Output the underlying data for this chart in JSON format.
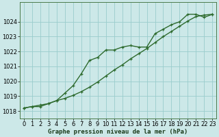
{
  "line1_x": [
    0,
    1,
    2,
    3,
    4,
    5,
    6,
    7,
    8,
    9,
    10,
    11,
    12,
    13,
    14,
    15,
    16,
    17,
    18,
    19,
    20,
    21,
    22,
    23
  ],
  "line1_y": [
    1018.2,
    1018.3,
    1018.3,
    1018.5,
    1018.7,
    1019.2,
    1019.7,
    1020.5,
    1021.4,
    1021.6,
    1022.1,
    1022.1,
    1022.3,
    1022.4,
    1022.3,
    1022.3,
    1023.2,
    1023.5,
    1023.8,
    1024.0,
    1024.5,
    1024.5,
    1024.3,
    1024.5
  ],
  "line2_x": [
    0,
    1,
    2,
    3,
    4,
    5,
    6,
    7,
    8,
    9,
    10,
    11,
    12,
    13,
    14,
    15,
    16,
    17,
    18,
    19,
    20,
    21,
    22,
    23
  ],
  "line2_y": [
    1018.2,
    1018.3,
    1018.4,
    1018.5,
    1018.7,
    1018.85,
    1019.05,
    1019.3,
    1019.6,
    1019.95,
    1020.35,
    1020.75,
    1021.1,
    1021.5,
    1021.85,
    1022.2,
    1022.6,
    1023.0,
    1023.35,
    1023.7,
    1024.05,
    1024.35,
    1024.45,
    1024.5
  ],
  "bg_color": "#cce8e8",
  "grid_color": "#99cccc",
  "line_color": "#2d6a2d",
  "xlabel": "Graphe pression niveau de la mer (hPa)",
  "xlim": [
    -0.5,
    23.5
  ],
  "ylim": [
    1017.5,
    1025.3
  ],
  "yticks": [
    1018,
    1019,
    1020,
    1021,
    1022,
    1023,
    1024
  ],
  "xticks": [
    0,
    1,
    2,
    3,
    4,
    5,
    6,
    7,
    8,
    9,
    10,
    11,
    12,
    13,
    14,
    15,
    16,
    17,
    18,
    19,
    20,
    21,
    22,
    23
  ],
  "marker": "P",
  "markersize": 3.5,
  "linewidth": 1.0,
  "tick_fontsize": 6.0,
  "xlabel_fontsize": 6.5
}
